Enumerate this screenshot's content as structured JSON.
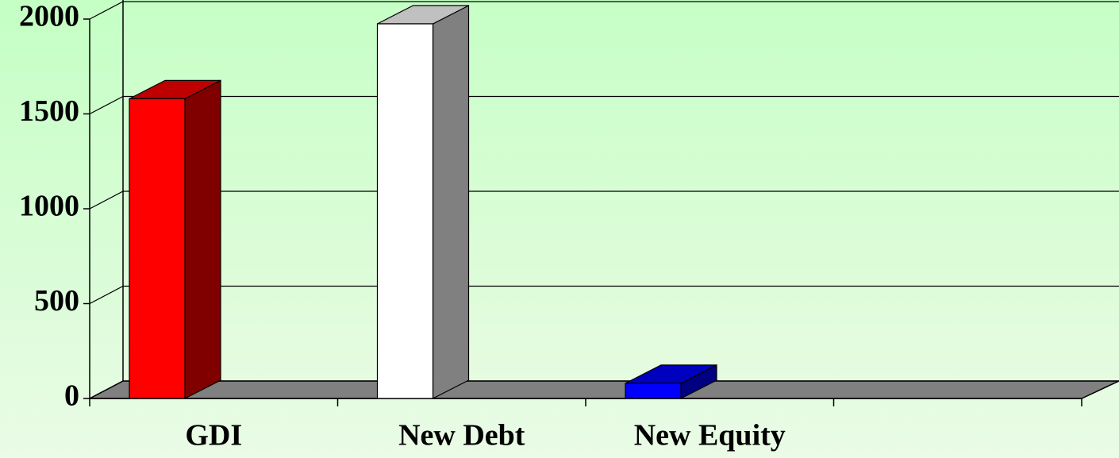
{
  "chart_data": {
    "type": "bar3d",
    "categories": [
      "GDI",
      "New Debt",
      "New Equity",
      null
    ],
    "values": [
      1580,
      1975,
      80,
      null
    ],
    "colors": [
      "#ff0000",
      "#ffffff",
      "#0000ff",
      null
    ],
    "ylim": [
      0,
      2000
    ],
    "yticks": [
      0,
      500,
      1000,
      1500,
      2000
    ],
    "grid": true
  }
}
